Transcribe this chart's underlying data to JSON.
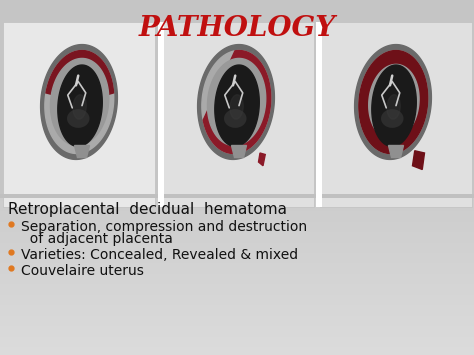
{
  "title": "PATHOLOGY",
  "title_color": "#c01010",
  "title_style": "italic",
  "title_fontsize": 20,
  "bg_color": "#c8c8c8",
  "top_bg": "#c5c5c5",
  "panel_bg": "#d2d2d2",
  "divider_color": "#bbbbbb",
  "heading_text": "Retroplacental  decidual  hematoma",
  "heading_fontsize": 11,
  "heading_color": "#111111",
  "bullet_color": "#e07820",
  "bullet_items": [
    "Separation, compression and destruction",
    "  of adjacent placenta",
    "Varieties: Concealed, Revealed & mixed",
    "Couvelaire uterus"
  ],
  "bullet_fontsize": 10,
  "bullet_text_color": "#111111",
  "box_colors": [
    "#e8e8e8",
    "#e0e0e0",
    "#e0e0e0"
  ],
  "box_border": "#c0c0c0",
  "uterus_outer_color": "#a8a8a8",
  "uterus_wall_color": "#888888",
  "uterus_inner_dark": "#252525",
  "placenta_color_1": "#7a1520",
  "placenta_color_2": "#8b1a28",
  "placenta_color_3": "#6e1018",
  "cord_color": "#c0c0c0",
  "sep_color": "#ffffff"
}
